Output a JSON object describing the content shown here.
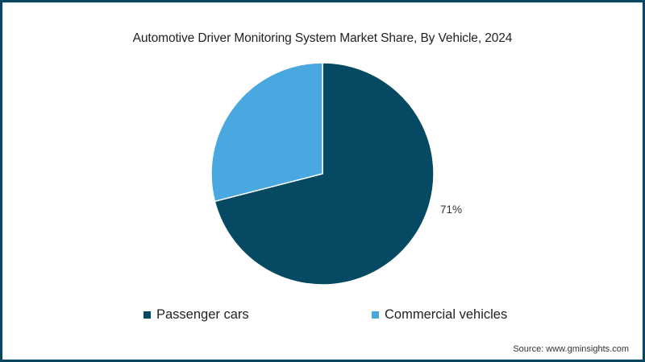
{
  "chart_data": {
    "type": "pie",
    "title": "Automotive Driver Monitoring System Market Share, By Vehicle, 2024",
    "categories": [
      "Passenger cars",
      "Commercial vehicles"
    ],
    "values": [
      71,
      29
    ],
    "units": "%",
    "data_labels": [
      {
        "category": "Passenger cars",
        "label": "71%"
      }
    ],
    "colors": [
      "#054a62",
      "#4aa8e0"
    ],
    "start_angle_deg": 0,
    "direction": "clockwise",
    "legend_position": "bottom",
    "source": "Source: www.gminsights.com"
  },
  "header": {
    "title": "Automotive Driver Monitoring System Market Share, By Vehicle, 2024"
  },
  "labels": {
    "passenger_pct": "71%"
  },
  "legend": {
    "items": [
      {
        "label": "Passenger cars",
        "color": "#054a62"
      },
      {
        "label": "Commercial vehicles",
        "color": "#4aa8e0"
      }
    ]
  },
  "footer": {
    "source": "Source: www.gminsights.com"
  },
  "theme": {
    "frame_color": "#0b4660",
    "passenger_color": "#054a62",
    "commercial_color": "#4aa8e0"
  }
}
